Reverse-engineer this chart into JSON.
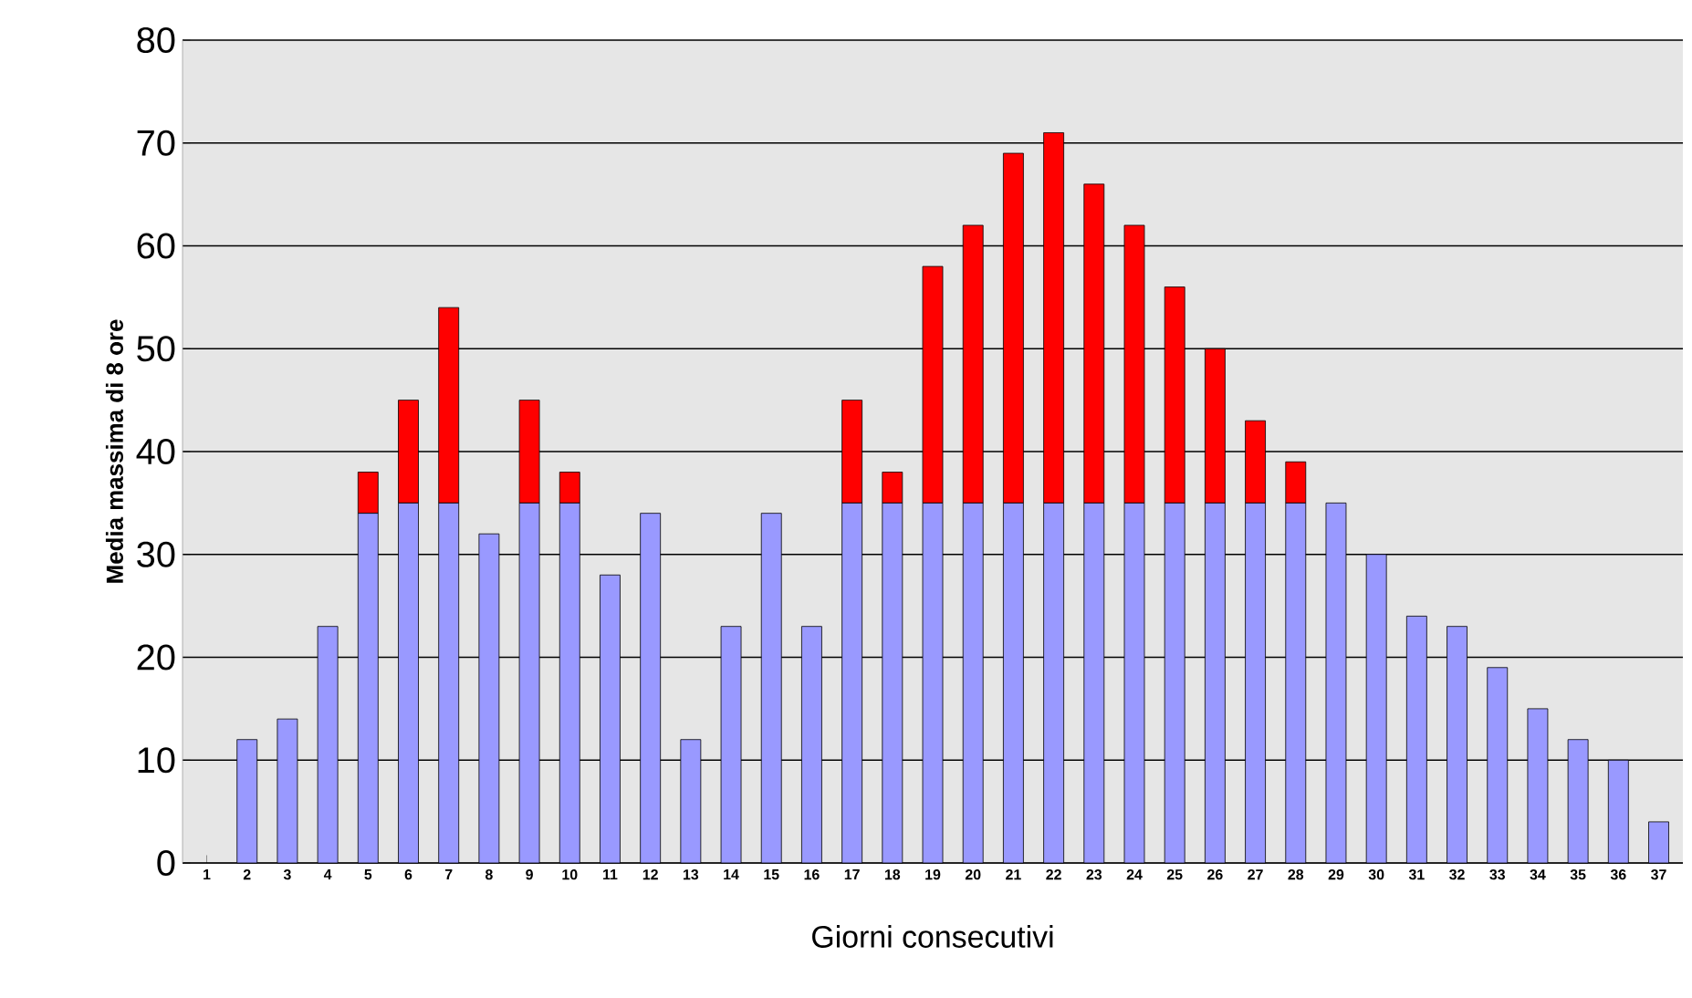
{
  "chart_data": {
    "type": "bar",
    "stacked": true,
    "xlabel": "Giorni consecutivi",
    "ylabel": "Media massima di 8 ore",
    "categories": [
      "1",
      "2",
      "3",
      "4",
      "5",
      "6",
      "7",
      "8",
      "9",
      "10",
      "11",
      "12",
      "13",
      "14",
      "15",
      "16",
      "17",
      "18",
      "19",
      "20",
      "21",
      "22",
      "23",
      "24",
      "25",
      "26",
      "27",
      "28",
      "29",
      "30",
      "31",
      "32",
      "33",
      "34",
      "35",
      "36",
      "37"
    ],
    "series": [
      {
        "color": "#9999ff",
        "values": [
          0,
          12,
          14,
          23,
          34,
          35,
          35,
          32,
          35,
          35,
          28,
          34,
          12,
          23,
          34,
          23,
          35,
          35,
          35,
          35,
          35,
          35,
          35,
          35,
          35,
          35,
          35,
          35,
          35,
          30,
          24,
          23,
          19,
          15,
          12,
          10,
          4
        ]
      },
      {
        "color": "#ff0000",
        "values": [
          0,
          0,
          0,
          0,
          4,
          10,
          19,
          0,
          10,
          3,
          0,
          0,
          0,
          0,
          0,
          0,
          10,
          3,
          23,
          27,
          34,
          36,
          31,
          27,
          21,
          15,
          8,
          4,
          0,
          0,
          0,
          0,
          0,
          0,
          0,
          0,
          0
        ]
      }
    ],
    "ylim": [
      0,
      80
    ],
    "yticks": [
      0,
      10,
      20,
      30,
      40,
      50,
      60,
      70,
      80
    ],
    "grid": "y"
  }
}
